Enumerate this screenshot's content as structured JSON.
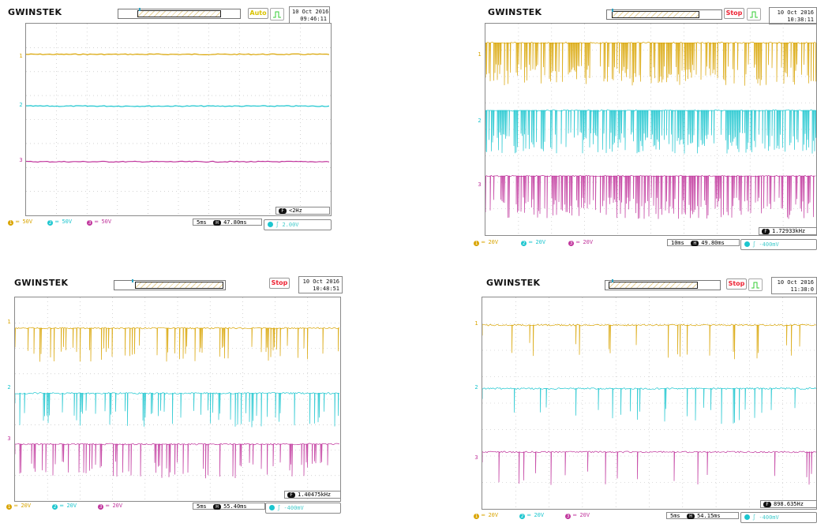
{
  "colors": {
    "ch1": "#d9a400",
    "ch2": "#1cc6cf",
    "ch3": "#c0349c",
    "grid": "#b9b9b9"
  },
  "scopes": [
    {
      "id": "tl",
      "brand": "GWINSTEK",
      "state": "Auto",
      "state_kind": "auto",
      "date_line1": "10 Oct 2016",
      "date_line2": "09:46:11",
      "channels": [
        {
          "label": "1",
          "scale": "50V"
        },
        {
          "label": "2",
          "scale": "50V"
        },
        {
          "label": "3",
          "scale": "50V"
        }
      ],
      "timebase": "5ms",
      "hpos_badge": "H",
      "hpos": "47.80ms",
      "freq_badge": "F",
      "freq": "<2Hz",
      "trig_level": "2.00V",
      "trace_style": "flat"
    },
    {
      "id": "tr",
      "brand": "GWINSTEK",
      "state": "Stop",
      "state_kind": "stop",
      "date_line1": "10 Oct 2016",
      "date_line2": "10:38:11",
      "channels": [
        {
          "label": "1",
          "scale": "20V"
        },
        {
          "label": "2",
          "scale": "20V"
        },
        {
          "label": "3",
          "scale": "20V"
        }
      ],
      "timebase": "10ms",
      "hpos_badge": "H",
      "hpos": "49.80ms",
      "freq_badge": "F",
      "freq": "1.72933kHz",
      "trig_level": "-400mV",
      "trace_style": "dense"
    },
    {
      "id": "bl",
      "brand": "GWINSTEK",
      "state": "Stop",
      "state_kind": "stop",
      "date_line1": "10 Oct 2016",
      "date_line2": "10:48:51",
      "channels": [
        {
          "label": "1",
          "scale": "20V"
        },
        {
          "label": "2",
          "scale": "20V"
        },
        {
          "label": "3",
          "scale": "20V"
        }
      ],
      "timebase": "5ms",
      "hpos_badge": "H",
      "hpos": "55.40ms",
      "freq_badge": "F",
      "freq": "1.40475kHz",
      "trig_level": "-400mV",
      "trace_style": "medium"
    },
    {
      "id": "br",
      "brand": "GWINSTEK",
      "state": "Stop",
      "state_kind": "stop",
      "date_line1": "10 Oct 2016",
      "date_line2": "11:38:0",
      "channels": [
        {
          "label": "1",
          "scale": "20V"
        },
        {
          "label": "2",
          "scale": "20V"
        },
        {
          "label": "3",
          "scale": "20V"
        }
      ],
      "timebase": "5ms",
      "hpos_badge": "H",
      "hpos": "54.15ms",
      "freq_badge": "F",
      "freq": "898.635Hz",
      "trig_level": "-400mV",
      "trace_style": "sparse"
    }
  ]
}
